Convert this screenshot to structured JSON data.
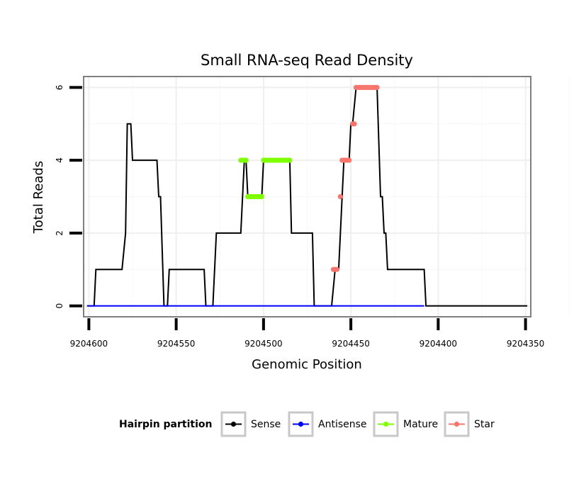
{
  "chart_data": {
    "type": "line",
    "title": "Small RNA-seq Read Density",
    "xlabel": "Genomic Position",
    "ylabel": "Total Reads",
    "x_reversed": true,
    "xlim": [
      9204603,
      9204347
    ],
    "ylim": [
      -0.3,
      6.3
    ],
    "x_ticks": [
      9204600,
      9204550,
      9204500,
      9204450,
      9204400,
      9204350
    ],
    "x_tick_labels": [
      "9204600",
      "9204550",
      "9204500",
      "9204450",
      "9204400",
      "9204350"
    ],
    "y_ticks": [
      0,
      2,
      4,
      6
    ],
    "y_tick_labels": [
      "0",
      "2",
      "4",
      "6"
    ],
    "grid": true,
    "legend": {
      "title": "Hairpin partition",
      "position": "bottom",
      "entries": [
        "Sense",
        "Antisense",
        "Mature",
        "Star"
      ]
    },
    "series": [
      {
        "name": "Sense",
        "color": "#000000",
        "marker": "line",
        "points": [
          [
            9204601,
            0
          ],
          [
            9204597,
            0
          ],
          [
            9204596,
            1
          ],
          [
            9204581,
            1
          ],
          [
            9204579,
            2
          ],
          [
            9204578,
            5
          ],
          [
            9204576,
            5
          ],
          [
            9204575,
            4
          ],
          [
            9204561,
            4
          ],
          [
            9204560,
            3
          ],
          [
            9204559,
            3
          ],
          [
            9204557,
            0
          ],
          [
            9204555,
            0
          ],
          [
            9204554,
            1
          ],
          [
            9204534,
            1
          ],
          [
            9204533,
            0
          ],
          [
            9204529,
            0
          ],
          [
            9204527,
            2
          ],
          [
            9204513,
            2
          ],
          [
            9204511,
            4
          ],
          [
            9204510,
            4
          ],
          [
            9204509,
            3
          ],
          [
            9204501,
            3
          ],
          [
            9204500,
            4
          ],
          [
            9204485,
            4
          ],
          [
            9204484,
            2
          ],
          [
            9204472,
            2
          ],
          [
            9204471,
            0
          ],
          [
            9204461,
            0
          ],
          [
            9204459,
            1
          ],
          [
            9204457,
            1
          ],
          [
            9204455,
            3
          ],
          [
            9204454,
            4
          ],
          [
            9204451,
            4
          ],
          [
            9204450,
            5
          ],
          [
            9204449,
            5
          ],
          [
            9204447,
            6
          ],
          [
            9204435,
            6
          ],
          [
            9204433,
            3
          ],
          [
            9204432,
            3
          ],
          [
            9204431,
            2
          ],
          [
            9204430,
            2
          ],
          [
            9204429,
            1
          ],
          [
            9204424,
            1
          ],
          [
            9204408,
            1
          ],
          [
            9204407,
            0
          ],
          [
            9204349,
            0
          ]
        ]
      },
      {
        "name": "Antisense",
        "color": "#0000ff",
        "marker": "line",
        "points": [
          [
            9204601,
            0
          ],
          [
            9204408,
            0
          ]
        ]
      },
      {
        "name": "Mature",
        "color": "#7fff00",
        "marker": "points",
        "points": [
          [
            9204513,
            4
          ],
          [
            9204512,
            4
          ],
          [
            9204511,
            4
          ],
          [
            9204510,
            4
          ],
          [
            9204509,
            3
          ],
          [
            9204508,
            3
          ],
          [
            9204507,
            3
          ],
          [
            9204506,
            3
          ],
          [
            9204505,
            3
          ],
          [
            9204504,
            3
          ],
          [
            9204503,
            3
          ],
          [
            9204502,
            3
          ],
          [
            9204501,
            3
          ],
          [
            9204500,
            4
          ],
          [
            9204499,
            4
          ],
          [
            9204498,
            4
          ],
          [
            9204497,
            4
          ],
          [
            9204496,
            4
          ],
          [
            9204495,
            4
          ],
          [
            9204494,
            4
          ],
          [
            9204493,
            4
          ],
          [
            9204492,
            4
          ],
          [
            9204491,
            4
          ],
          [
            9204490,
            4
          ],
          [
            9204489,
            4
          ],
          [
            9204488,
            4
          ],
          [
            9204487,
            4
          ],
          [
            9204486,
            4
          ],
          [
            9204485,
            4
          ]
        ]
      },
      {
        "name": "Star",
        "color": "#f8766d",
        "marker": "points",
        "points": [
          [
            9204460,
            1
          ],
          [
            9204459,
            1
          ],
          [
            9204458,
            1
          ],
          [
            9204456,
            3
          ],
          [
            9204455,
            4
          ],
          [
            9204454,
            4
          ],
          [
            9204453,
            4
          ],
          [
            9204452,
            4
          ],
          [
            9204451,
            4
          ],
          [
            9204449,
            5
          ],
          [
            9204448,
            5
          ],
          [
            9204447,
            6
          ],
          [
            9204446,
            6
          ],
          [
            9204445,
            6
          ],
          [
            9204444,
            6
          ],
          [
            9204443,
            6
          ],
          [
            9204442,
            6
          ],
          [
            9204441,
            6
          ],
          [
            9204440,
            6
          ],
          [
            9204439,
            6
          ],
          [
            9204438,
            6
          ],
          [
            9204437,
            6
          ],
          [
            9204436,
            6
          ],
          [
            9204435,
            6
          ]
        ]
      }
    ]
  }
}
